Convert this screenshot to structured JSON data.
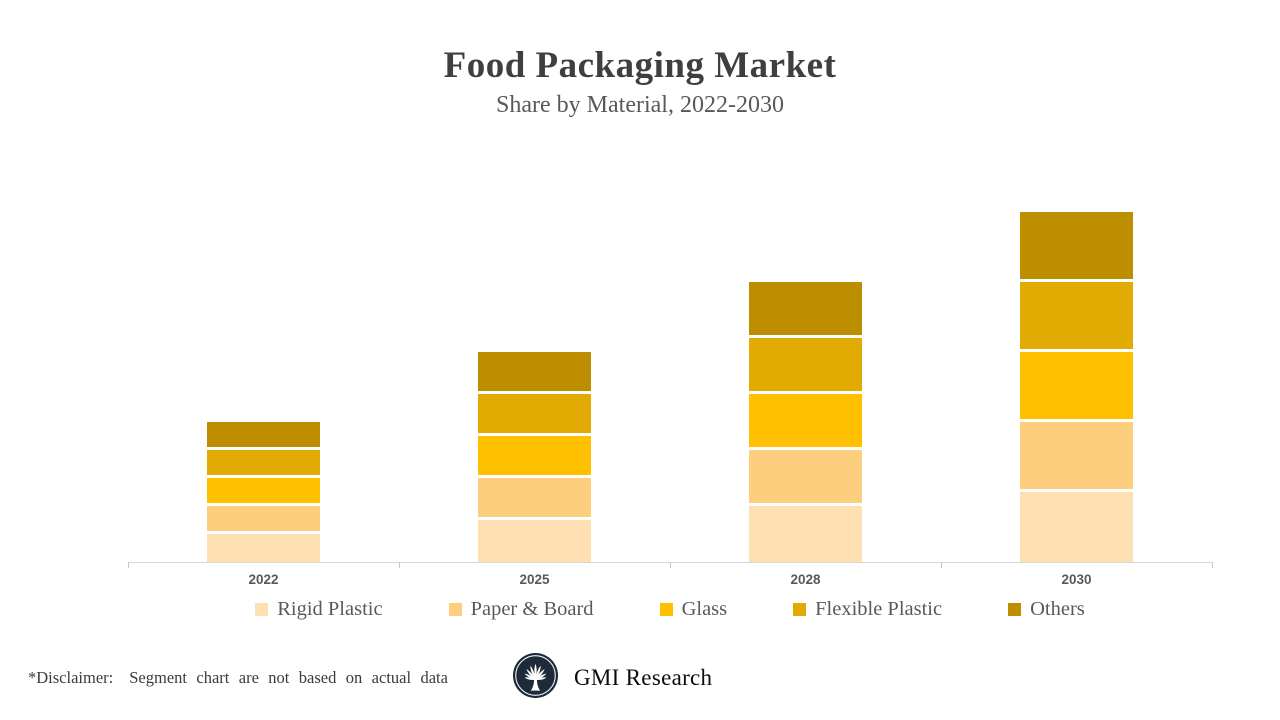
{
  "header": {
    "title": "Food Packaging Market",
    "subtitle": "Share by Material, 2022-2030"
  },
  "chart_data": {
    "type": "bar",
    "stacked": true,
    "title": "Food Packaging Market",
    "subtitle": "Share by Material, 2022-2030",
    "categories": [
      "2022",
      "2025",
      "2028",
      "2030"
    ],
    "series": [
      {
        "name": "Rigid Plastic",
        "color": "#FDDFB1",
        "values": [
          20,
          30,
          40,
          50
        ]
      },
      {
        "name": "Paper & Board",
        "color": "#FDCE7E",
        "values": [
          20,
          30,
          40,
          50
        ]
      },
      {
        "name": "Glass",
        "color": "#FFC000",
        "values": [
          20,
          30,
          40,
          50
        ]
      },
      {
        "name": "Flexible Plastic",
        "color": "#E2AB04",
        "values": [
          20,
          30,
          40,
          50
        ]
      },
      {
        "name": "Others",
        "color": "#BD8F00",
        "values": [
          20,
          30,
          40,
          50
        ]
      }
    ],
    "totals": [
      100,
      150,
      200,
      250
    ],
    "ylim": [
      0,
      290
    ],
    "grid": false,
    "y_axis_visible": false,
    "legend_position": "bottom",
    "axis_color": "#D9D9D9"
  },
  "footer": {
    "disclaimer_label": "*Disclaimer:",
    "disclaimer_text": "Segment chart are not based on actual data",
    "brand_name": "GMI Research",
    "logo_color": "#1C2A3A"
  }
}
